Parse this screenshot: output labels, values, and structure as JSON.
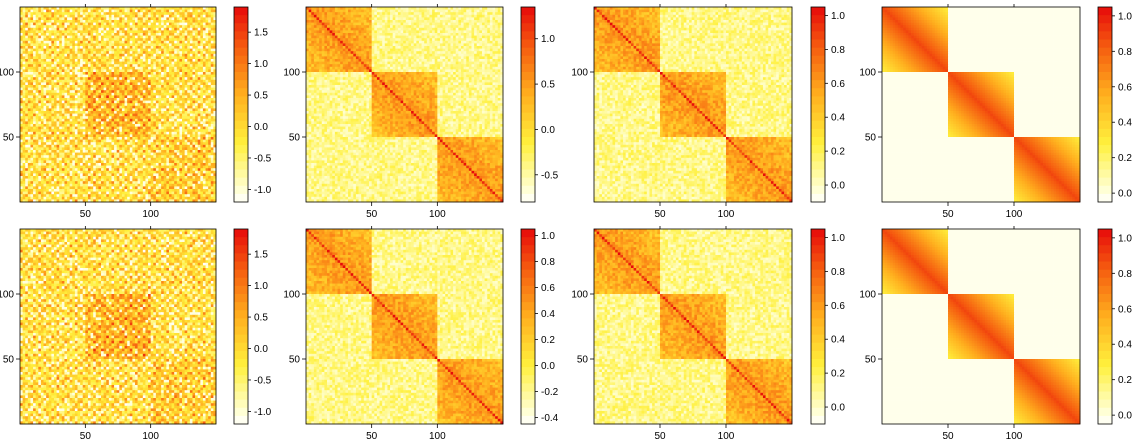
{
  "chart_data": [
    {
      "type": "heatmap",
      "pattern": "noisy",
      "blocks": 3,
      "n": 150,
      "x_ticks": [
        50,
        100
      ],
      "y_ticks": [
        50,
        100
      ],
      "colorbar_ticks": [
        "-1.0",
        "-0.5",
        "0.0",
        "0.5",
        "1.0",
        "1.5"
      ],
      "colorbar_range": [
        -1.2,
        1.9
      ]
    },
    {
      "type": "heatmap",
      "pattern": "block",
      "blocks": 3,
      "n": 150,
      "x_ticks": [
        50,
        100
      ],
      "y_ticks": [
        50,
        100
      ],
      "colorbar_ticks": [
        "-0.5",
        "0.0",
        "0.5",
        "1.0"
      ],
      "colorbar_range": [
        -0.8,
        1.35
      ]
    },
    {
      "type": "heatmap",
      "pattern": "block",
      "blocks": 3,
      "n": 150,
      "x_ticks": [
        50,
        100
      ],
      "y_ticks": [
        100
      ],
      "colorbar_ticks": [
        "0.0",
        "0.2",
        "0.4",
        "0.6",
        "0.8",
        "1.0"
      ],
      "colorbar_range": [
        -0.1,
        1.05
      ]
    },
    {
      "type": "heatmap",
      "pattern": "smooth_block",
      "blocks": 3,
      "n": 150,
      "x_ticks": [
        50,
        100
      ],
      "y_ticks": [
        50,
        100
      ],
      "colorbar_ticks": [
        "0.0",
        "0.2",
        "0.4",
        "0.6",
        "0.8",
        "1.0"
      ],
      "colorbar_range": [
        -0.05,
        1.05
      ]
    },
    {
      "type": "heatmap",
      "pattern": "noisy",
      "blocks": 3,
      "n": 150,
      "x_ticks": [
        50,
        100
      ],
      "y_ticks": [
        50,
        100
      ],
      "colorbar_ticks": [
        "-1.0",
        "-0.5",
        "0.0",
        "0.5",
        "1.0",
        "1.5"
      ],
      "colorbar_range": [
        -1.2,
        1.9
      ]
    },
    {
      "type": "heatmap",
      "pattern": "block",
      "blocks": 3,
      "n": 150,
      "x_ticks": [
        50,
        100
      ],
      "y_ticks": [
        50,
        100
      ],
      "colorbar_ticks": [
        "-0.4",
        "-0.2",
        "0.0",
        "0.2",
        "0.4",
        "0.6",
        "0.8",
        "1.0"
      ],
      "colorbar_range": [
        -0.45,
        1.05
      ]
    },
    {
      "type": "heatmap",
      "pattern": "block",
      "blocks": 3,
      "n": 150,
      "x_ticks": [
        50,
        100
      ],
      "y_ticks": [
        50,
        100
      ],
      "colorbar_ticks": [
        "0.0",
        "0.2",
        "0.4",
        "0.6",
        "0.8",
        "1.0"
      ],
      "colorbar_range": [
        -0.1,
        1.05
      ]
    },
    {
      "type": "heatmap",
      "pattern": "smooth_block",
      "blocks": 3,
      "n": 150,
      "x_ticks": [
        50,
        100
      ],
      "y_ticks": [
        50,
        100
      ],
      "colorbar_ticks": [
        "0.0",
        "0.2",
        "0.4",
        "0.6",
        "0.8",
        "1.0"
      ],
      "colorbar_range": [
        -0.05,
        1.05
      ]
    }
  ]
}
